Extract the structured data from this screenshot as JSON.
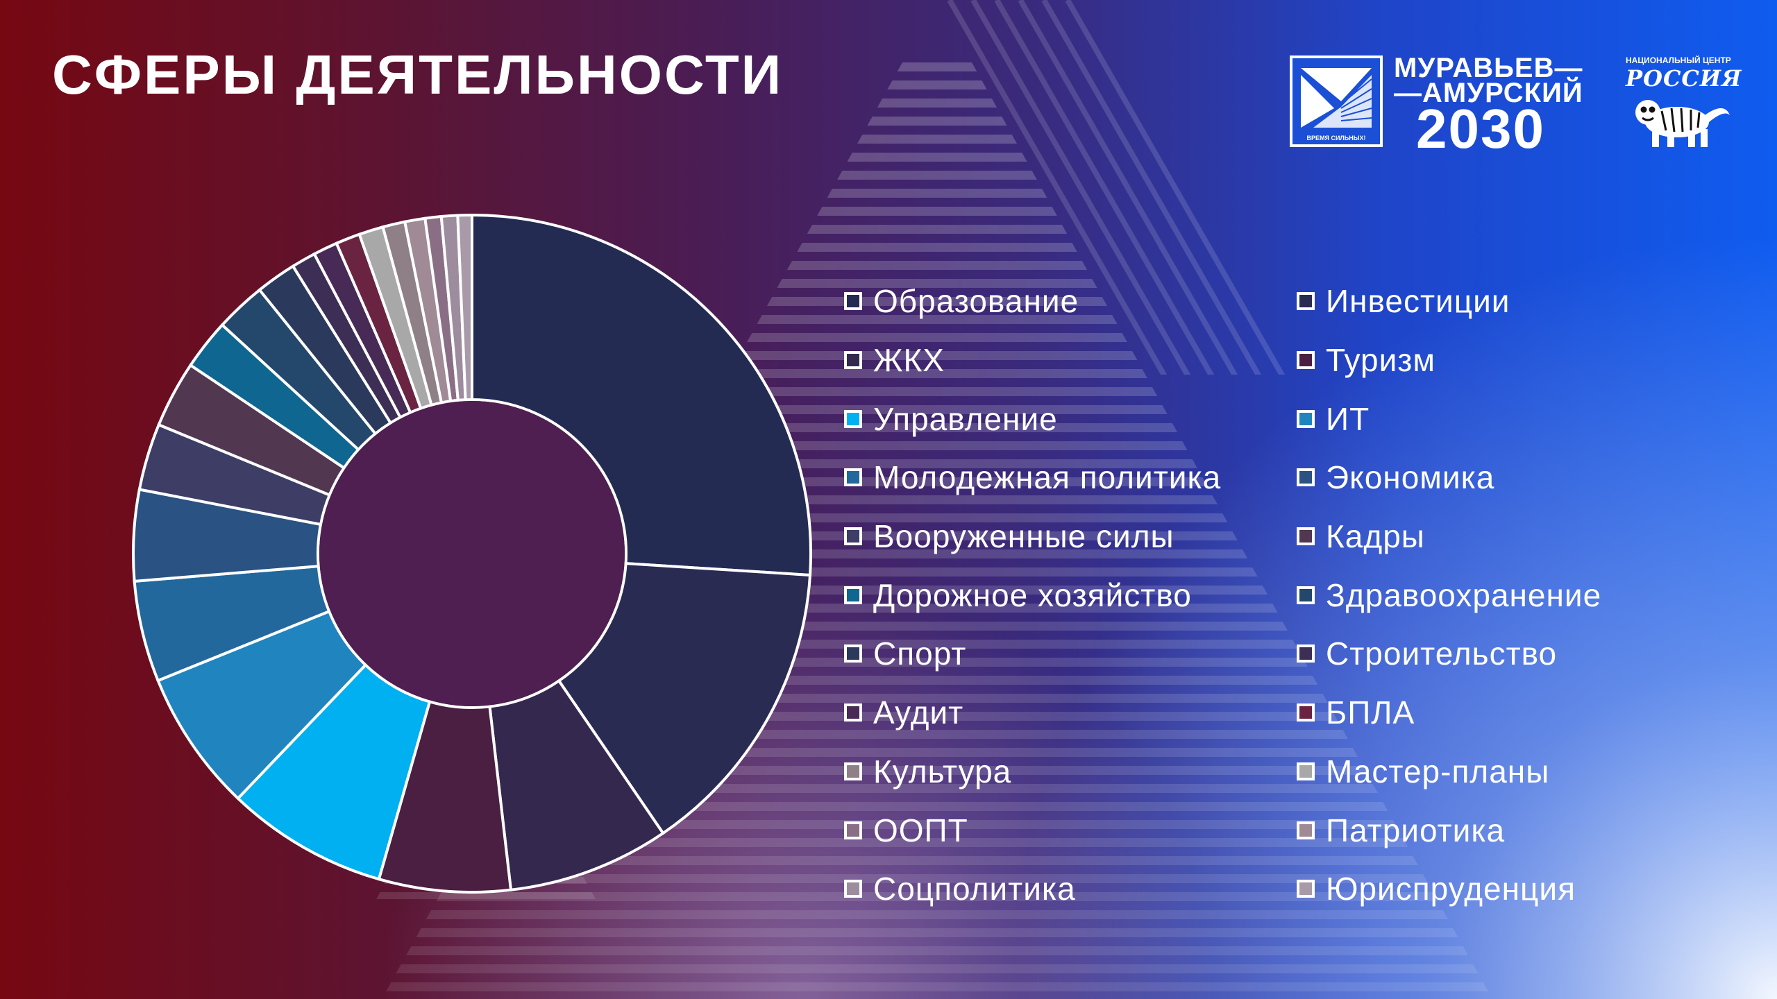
{
  "slide": {
    "title": "СФЕРЫ ДЕЯТЕЛЬНОСТИ",
    "colors": {
      "bg_left": "#760812",
      "bg_mid": "#4a1d55",
      "bg_right": "#0f5cf0",
      "donut_hole": "#4e1f50",
      "separator": "#ffffff"
    }
  },
  "logos": {
    "murav": {
      "line1": "МУРАВЬЕВ—",
      "line2": "—АМУРСКИЙ",
      "year": "2030",
      "emblem_caption": "ВРЕМЯ СИЛЬНЫХ!"
    },
    "russia": {
      "caption": "НАЦИОНАЛЬНЫЙ ЦЕНТР",
      "word": "РОССИЯ",
      "icon": "tiger-emblem-icon"
    }
  },
  "chart_data": {
    "type": "pie",
    "title": "",
    "donut": true,
    "start": "top, clockwise",
    "legend_position": "right, two columns",
    "series": [
      {
        "name": "Образование",
        "value": 27.0,
        "color": "#232b53"
      },
      {
        "name": "Инвестиции",
        "value": 15.0,
        "color": "#2a2b52"
      },
      {
        "name": "ЖКХ",
        "value": 8.0,
        "color": "#35284f"
      },
      {
        "name": "Туризм",
        "value": 6.5,
        "color": "#4a1f42"
      },
      {
        "name": "Управление",
        "value": 8.0,
        "color": "#00b0f0"
      },
      {
        "name": "ИТ",
        "value": 7.0,
        "color": "#2084bf"
      },
      {
        "name": "Молодежная политика",
        "value": 5.0,
        "color": "#22689d"
      },
      {
        "name": "Экономика",
        "value": 4.5,
        "color": "#2a5282"
      },
      {
        "name": "Вооруженные силы",
        "value": 3.3,
        "color": "#3e3d66"
      },
      {
        "name": "Кадры",
        "value": 3.3,
        "color": "#523751"
      },
      {
        "name": "Дорожное хозяйство",
        "value": 2.5,
        "color": "#0f6690"
      },
      {
        "name": "Здравоохранение",
        "value": 2.5,
        "color": "#24476c"
      },
      {
        "name": "Спорт",
        "value": 2.0,
        "color": "#2b3a5c"
      },
      {
        "name": "Строительство",
        "value": 1.2,
        "color": "#3d2e56"
      },
      {
        "name": "Аудит",
        "value": 1.2,
        "color": "#472a55"
      },
      {
        "name": "БПЛА",
        "value": 1.2,
        "color": "#6a2441"
      },
      {
        "name": "Мастер-планы",
        "value": 1.2,
        "color": "#a8a8a8"
      },
      {
        "name": "Культура",
        "value": 1.1,
        "color": "#8f7f86"
      },
      {
        "name": "Патриотика",
        "value": 1.0,
        "color": "#a08a96"
      },
      {
        "name": "ООПТ",
        "value": 0.8,
        "color": "#8a6e86"
      },
      {
        "name": "Соцполитика",
        "value": 0.8,
        "color": "#9d8c9e"
      },
      {
        "name": "Юриспруденция",
        "value": 0.7,
        "color": "#a89aa8"
      }
    ]
  },
  "legend": {
    "columns": [
      [
        {
          "label": "Образование",
          "swatch": "#232b53"
        },
        {
          "label": "ЖКХ",
          "swatch": "#35284f"
        },
        {
          "label": "Управление",
          "swatch": "#00b0f0"
        },
        {
          "label": "Молодежная политика",
          "swatch": "#22689d"
        },
        {
          "label": "Вооруженные силы",
          "swatch": "#3e3d66"
        },
        {
          "label": "Дорожное хозяйство",
          "swatch": "#0f6690"
        },
        {
          "label": "Спорт",
          "swatch": "#2b3a5c"
        },
        {
          "label": "Аудит",
          "swatch": "#472a55"
        },
        {
          "label": "Культура",
          "swatch": "#8f7f86"
        },
        {
          "label": "ООПТ",
          "swatch": "#8a6e86"
        },
        {
          "label": "Соцполитика",
          "swatch": "#9d8c9e"
        }
      ],
      [
        {
          "label": "Инвестиции",
          "swatch": "#2a2b52"
        },
        {
          "label": "Туризм",
          "swatch": "#4a1f42"
        },
        {
          "label": "ИТ",
          "swatch": "#2084bf"
        },
        {
          "label": "Экономика",
          "swatch": "#2a5282"
        },
        {
          "label": "Кадры",
          "swatch": "#523751"
        },
        {
          "label": "Здравоохранение",
          "swatch": "#24476c"
        },
        {
          "label": "Строительство",
          "swatch": "#3d2e56"
        },
        {
          "label": "БПЛА",
          "swatch": "#6a2441"
        },
        {
          "label": "Мастер-планы",
          "swatch": "#a8a8a8"
        },
        {
          "label": "Патриотика",
          "swatch": "#a08a96"
        },
        {
          "label": "Юриспруденция",
          "swatch": "#a89aa8"
        }
      ]
    ]
  }
}
